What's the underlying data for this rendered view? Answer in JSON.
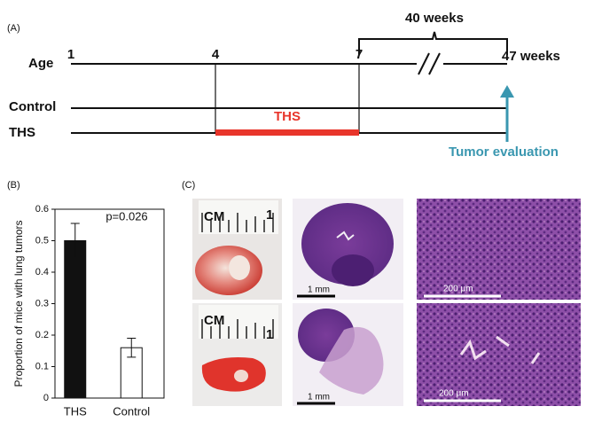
{
  "panel_labels": [
    "(A)",
    "(B)",
    "(C)"
  ],
  "timeline": {
    "axis_label": "Age",
    "ticks": [
      "1",
      "4",
      "7",
      "47 weeks"
    ],
    "interval_label": "40 weeks",
    "rows": [
      "Control",
      "THS"
    ],
    "exposure_label": "THS",
    "endpoint_label": "Tumor evaluation"
  },
  "chart_data": {
    "type": "bar",
    "ylabel": "Proportion of mice with lung tumors",
    "annotation": "p=0.026",
    "categories": [
      "THS",
      "Control"
    ],
    "values": [
      0.5,
      0.16
    ],
    "errors": [
      0.055,
      0.03
    ],
    "colors": [
      "#111111",
      "#ffffff"
    ],
    "ylim": [
      0,
      0.6
    ],
    "yticks": [
      0,
      0.1,
      0.2,
      0.3,
      0.4,
      0.5,
      0.6
    ]
  },
  "images": {
    "ruler_unit_labels": [
      "CM",
      "CM"
    ],
    "ruler_number_labels": [
      "1",
      "1"
    ],
    "low_mag_scale_labels": [
      "1 mm",
      "1 mm"
    ],
    "high_mag_scale_labels": [
      "200 μm",
      "200 μm"
    ]
  }
}
